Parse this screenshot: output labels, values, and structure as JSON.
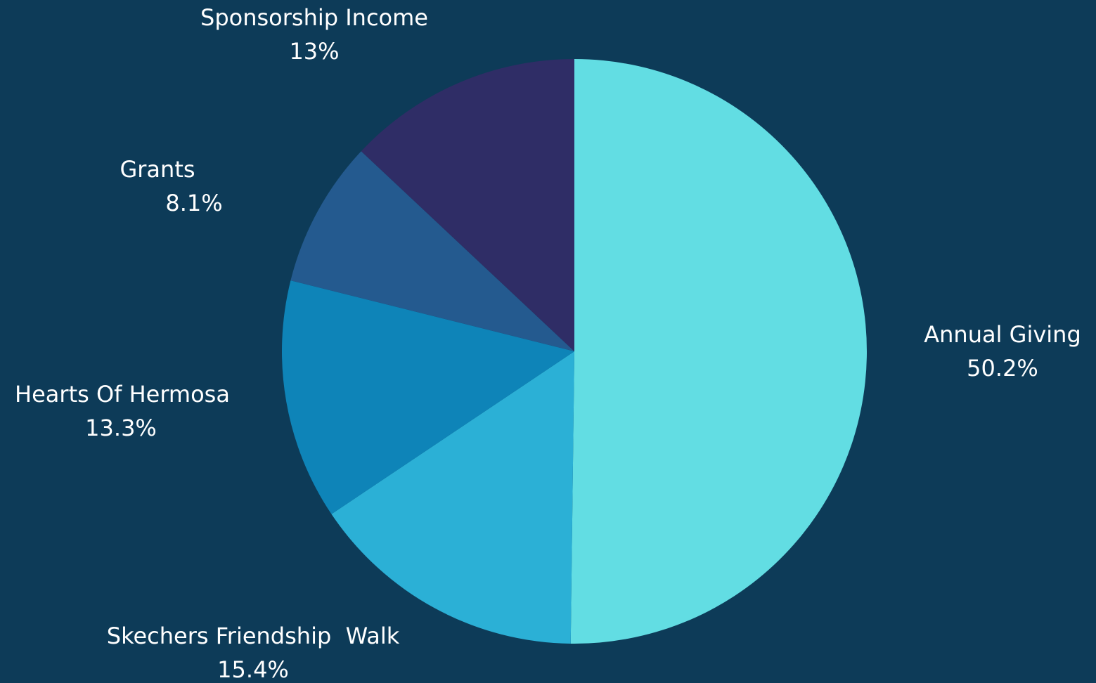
{
  "chart_data": {
    "type": "pie",
    "categories": [
      "Annual Giving",
      "Skechers Friendship  Walk",
      "Hearts Of Hermosa",
      "Grants",
      "Sponsorship Income"
    ],
    "values": [
      50.2,
      15.4,
      13.3,
      8.1,
      13
    ],
    "value_labels": [
      "50.2%",
      "15.4%",
      "13.3%",
      "8.1%",
      "13%"
    ],
    "colors": [
      "#62dde3",
      "#2bb0d6",
      "#0e84b8",
      "#245a8f",
      "#2f2d66"
    ],
    "background": "#0d3b58"
  }
}
